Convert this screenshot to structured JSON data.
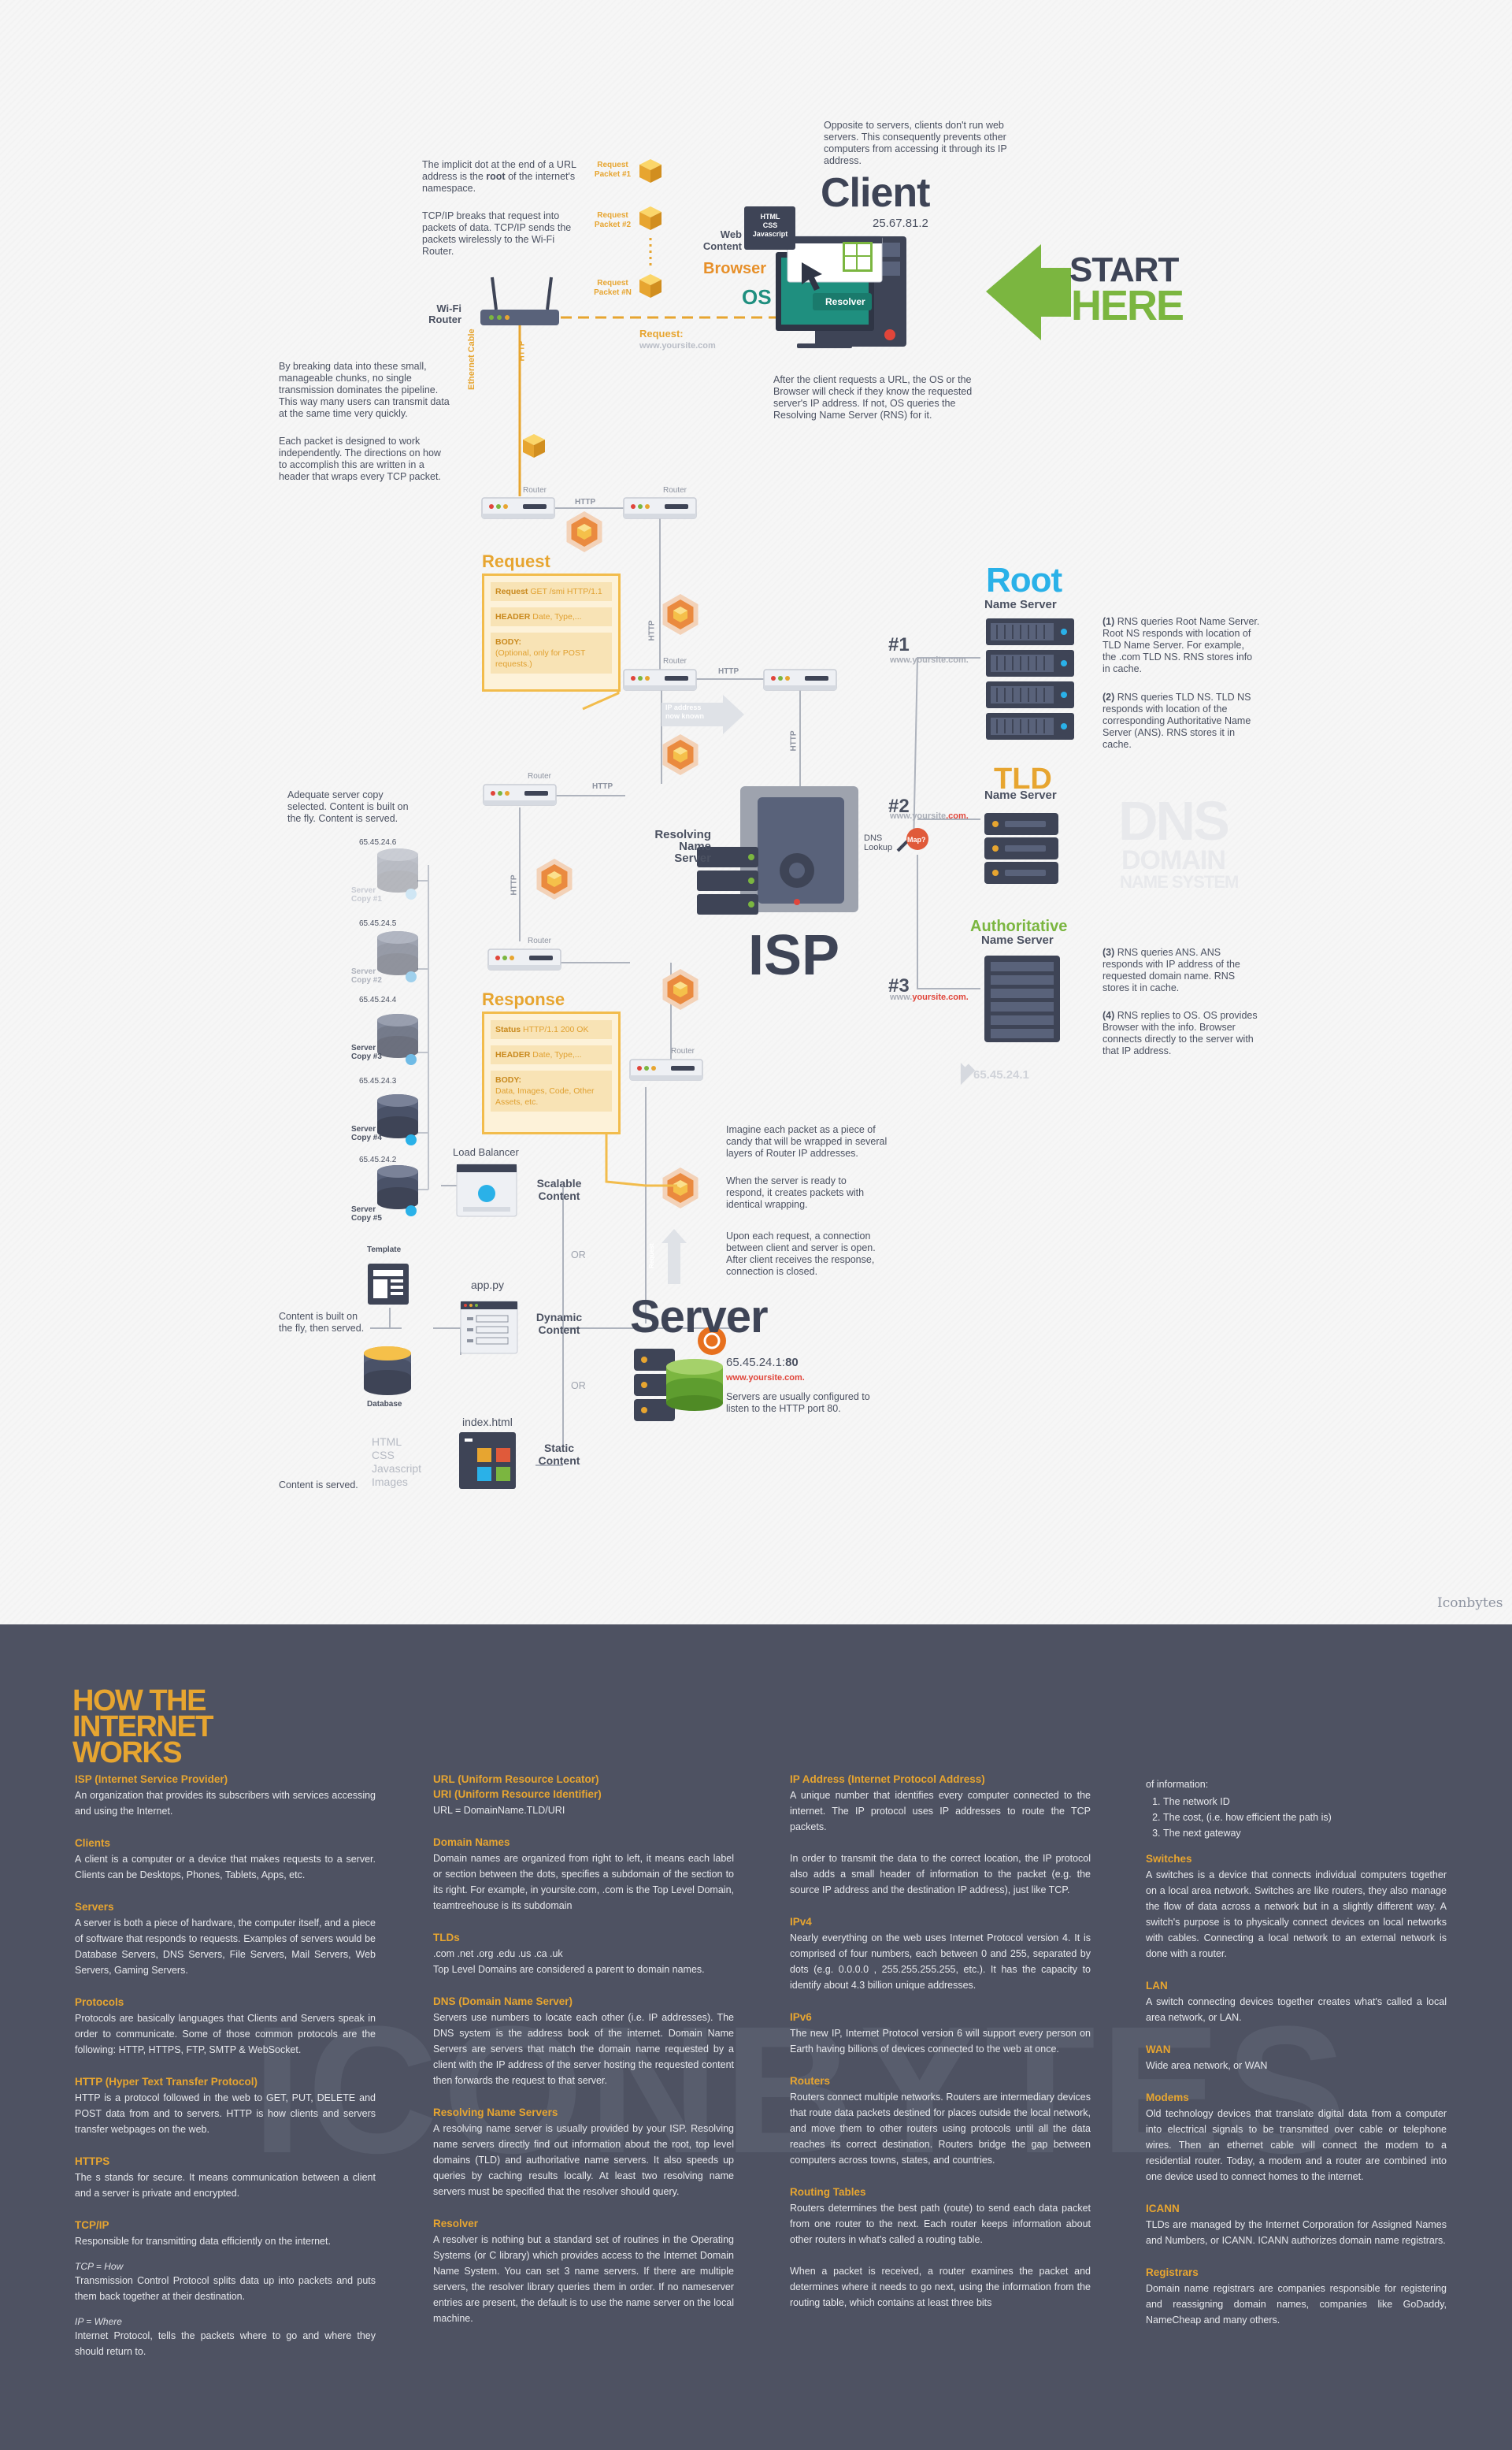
{
  "colors": {
    "gold": "#e7a530",
    "green": "#7bb640",
    "teal": "#1f8f7f",
    "dark": "#3e4456",
    "blue": "#2ab1e8",
    "red": "#e0453a",
    "bottom_bg": "#4e5262"
  },
  "start": {
    "line1": "START",
    "line2": "HERE"
  },
  "client": {
    "title": "Client",
    "ip": "25.67.81.2",
    "note": "Opposite to servers, clients don't run web servers. This consequently prevents other computers from accessing it through its IP address.",
    "web_content": "Web\nContent",
    "web_card": "HTML\nCSS\nJavascript",
    "browser": "Browser",
    "os": "OS",
    "resolver": "Resolver",
    "request_label": "Request:",
    "request_url": "www.yoursite.com",
    "after_note": "After the client requests a URL, the OS or the Browser will check if they know the requested server's IP address. If not, OS queries the Resolving Name Server (RNS) for it."
  },
  "router_notes": {
    "dot_pre": "The implicit dot at the end of a URL address is the ",
    "dot_bold": "root",
    "dot_post": " of the internet's namespace.",
    "tcp": "TCP/IP breaks that request into packets of data. TCP/IP sends the packets wirelessly to the Wi-Fi Router.",
    "chunks": "By breaking data into these small, manageable chunks, no single transmission dominates the pipeline. This way many users can transmit data at the same time very quickly.",
    "packet": "Each packet is designed to work independently. The directions on how to accomplish this are written in a header that wraps every TCP packet."
  },
  "packets": [
    "Request\nPacket #1",
    "Request\nPacket #2",
    "Request\nPacket #N"
  ],
  "wifi_router": "Wi-Fi\nRouter",
  "ethernet": "Ethernet Cable",
  "http": "HTTP",
  "router": "Router",
  "request_card": {
    "title": "Request",
    "rows": [
      {
        "key": "Request",
        "val": "GET /smi HTTP/1.1"
      },
      {
        "key": "HEADER",
        "val": "Date, Type,..."
      },
      {
        "key": "BODY:",
        "val": "(Optional, only for POST requests.)"
      }
    ]
  },
  "response_card": {
    "title": "Response",
    "rows": [
      {
        "key": "Status",
        "val": "HTTP/1.1 200 OK"
      },
      {
        "key": "HEADER",
        "val": "Date, Type,..."
      },
      {
        "key": "BODY:",
        "val": "Data, Images, Code, Other Assets, etc."
      }
    ]
  },
  "ip_arrow": "IP address\nnow known",
  "dns": {
    "root_title": "Root",
    "root_sub": "Name Server",
    "tld_title": "TLD",
    "tld_sub": "Name Server",
    "auth_title": "Authoritative",
    "auth_sub": "Name Server",
    "n1": "#1",
    "n2": "#2",
    "n3": "#3",
    "url1_pre": "www.yoursite",
    "url1_hl": ".com.",
    "url2_pre": "www.yoursite",
    "url2_hl": ".com.",
    "url3_pre": "www.",
    "url3_hl": "yoursite.com.",
    "lookup": "DNS\nLookup",
    "lookup_badge": "Map?",
    "logo1": "DNS",
    "logo2": "DOMAIN",
    "logo3": "NAME SYSTEM",
    "ip": "65.45.24.1",
    "note1_num": "(1)",
    "note1": " RNS queries Root Name Server. Root NS responds with location of TLD Name Server. For example, the .com TLD NS. RNS stores info in cache.",
    "note2_num": "(2)",
    "note2": " RNS queries TLD NS. TLD NS responds with location of the corresponding Authoritative Name Server (ANS). RNS stores it in cache.",
    "note3_num": "(3)",
    "note3": " RNS queries ANS. ANS responds with IP address of the requested domain name. RNS stores it in cache.",
    "note4_num": "(4)",
    "note4": " RNS replies to OS. OS provides Browser with the info. Browser connects directly to the server with that IP address."
  },
  "isp": {
    "title": "ISP",
    "rns": "Resolving\nName\nServer"
  },
  "server_copies": {
    "note": "Adequate server copy selected. Content is built on the fly. Content is served.",
    "items": [
      {
        "ip": "65.45.24.6",
        "name": "Server\nCopy #1"
      },
      {
        "ip": "65.45.24.5",
        "name": "Server\nCopy #2"
      },
      {
        "ip": "65.45.24.4",
        "name": "Server\nCopy #3"
      },
      {
        "ip": "65.45.24.3",
        "name": "Server\nCopy #4"
      },
      {
        "ip": "65.45.24.2",
        "name": "Server\nCopy #5"
      }
    ]
  },
  "content": {
    "load_balancer": "Load Balancer",
    "scalable": "Scalable\nContent",
    "or1": "OR",
    "or2": "OR",
    "template": "Template",
    "app": "app.py",
    "dynamic": "Dynamic\nContent",
    "built": "Content is built on\nthe fly, then served.",
    "database": "Database",
    "index": "index.html",
    "static": "Static\nContent",
    "assets": "HTML\nCSS\nJavascript\nImages",
    "served": "Content is served."
  },
  "server": {
    "title": "Server",
    "ip_pre": "65.45.24.1:",
    "ip_port": "80",
    "url": "www.yoursite.com.",
    "port_note": "Servers are usually configured to listen to the HTTP port 80.",
    "candy": "Imagine each packet as a piece of candy that will be wrapped in several layers of Router IP addresses.",
    "ready": "When the server is ready to respond, it creates packets with identical wrapping.",
    "request_note": "Upon each request, a connection between client and server is open. After client receives the response, connection is closed.",
    "arrow_label": "Request"
  },
  "signature": "Iconbytes",
  "glossary": {
    "logo": "HOW THE\nINTERNET\nWORKS",
    "watermark": "ICONBYTES",
    "col1": [
      {
        "title": "ISP (Internet Service Provider)",
        "body": "An organization that provides its subscribers with services accessing and using the Internet."
      },
      {
        "title": "Clients",
        "body": "A client is a computer or a device that makes requests to a server. Clients can be Desktops, Phones, Tablets, Apps, etc."
      },
      {
        "title": "Servers",
        "body": "A server is both a piece of hardware, the computer itself, and a piece of software that responds to requests. Examples of servers would be Database Servers, DNS Servers, File Servers, Mail Servers, Web Servers, Gaming Servers."
      },
      {
        "title": "Protocols",
        "body": "Protocols are basically languages that Clients and Servers speak in order to communicate. Some of those common protocols are the following: HTTP, HTTPS, FTP, SMTP & WebSocket."
      },
      {
        "title": "HTTP (Hyper Text Transfer Protocol)",
        "body": "HTTP is a protocol followed in the web to GET, PUT, DELETE and POST data from and to servers. HTTP is how clients and servers transfer webpages on the web."
      },
      {
        "title": "HTTPS",
        "body": "The s stands for secure. It means communication between a client and a server is private and encrypted."
      },
      {
        "title": "TCP/IP",
        "body": "Responsible for transmitting data efficiently on the internet.",
        "sub1": "TCP = How",
        "sub1_body": "Transmission Control Protocol splits data up into packets and puts them back together at their destination.",
        "sub2": "IP = Where",
        "sub2_body": "Internet Protocol, tells the packets where to go and where they should return to."
      }
    ],
    "col2": [
      {
        "title": "URL (Uniform Resource Locator)",
        "title2": "URI (Uniform Resource Identifier)",
        "body": "URL = DomainName.TLD/URI"
      },
      {
        "title": "Domain Names",
        "body": "Domain names are organized from right to left, it means each label or section between the dots, specifies a subdomain of the section to its right. For example, in yoursite.com, .com is the Top Level Domain, teamtreehouse is its subdomain"
      },
      {
        "title": "TLDs",
        "body": ".com .net .org .edu .us .ca .uk\nTop Level Domains are considered a parent to domain names."
      },
      {
        "title": "DNS (Domain Name Server)",
        "body": "Servers use numbers to locate each other (i.e. IP addresses). The DNS system is the address book of the internet. Domain Name Servers are servers that match the domain name requested by a client with the IP address of the server hosting the requested content then forwards the request to that server."
      },
      {
        "title": "Resolving Name Servers",
        "body": "A resolving name server is usually provided by your ISP. Resolving name servers directly find out information about the root, top level domains (TLD) and authoritative name servers. It also speeds up queries by caching results locally. At least two resolving name servers must be specified that the resolver should query."
      },
      {
        "title": "Resolver",
        "body": "A resolver is nothing but a standard set of routines in the Operating Systems (or C library) which provides access to the Internet Domain Name System. You can set 3 name servers. If there are multiple servers, the resolver library queries them in order. If no nameserver entries are present, the default is to use the name server on the local machine."
      }
    ],
    "col3": [
      {
        "title": "IP Address (Internet Protocol Address)",
        "body": "A unique number that identifies every computer connected to the internet. The IP protocol uses IP addresses to route the TCP packets.\n\nIn order to transmit the data to the correct location, the IP protocol also adds a small header of information to the packet (e.g. the source IP address and the destination IP address), just like TCP."
      },
      {
        "title": "IPv4",
        "body": "Nearly everything on the web uses Internet Protocol version 4. It is comprised of four numbers, each between 0 and 255, separated by dots (e.g. 0.0.0.0 , 255.255.255.255, etc.). It has the capacity to identify about 4.3 billion unique addresses."
      },
      {
        "title": "IPv6",
        "body": "The new IP, Internet Protocol version 6 will support every person on Earth having billions of devices connected to the web at once."
      },
      {
        "title": "Routers",
        "body": "Routers connect multiple networks. Routers are intermediary devices that route data packets destined for places outside the local network, and move them to other routers using protocols until all the data reaches its correct destination. Routers bridge the gap between computers across towns, states, and countries."
      },
      {
        "title": "Routing Tables",
        "body": "Routers determines the best path (route) to send each data packet from one router to the next. Each router keeps information about other routers in what's called a routing table.\n\nWhen a packet is received, a router examines the packet and determines where it needs to go next, using the information from the routing table, which contains at least three bits"
      }
    ],
    "col4_intro": "of information:",
    "col4_list": [
      "The network ID",
      "The cost, (i.e. how efficient the path is)",
      "The next gateway"
    ],
    "col4": [
      {
        "title": "Switches",
        "body": "A switches is a device that connects individual computers together on a local area network. Switches are like routers, they also manage the flow of data across a network but in a slightly different way. A switch's purpose is to physically connect devices on local networks with cables. Connecting a local network to an external network is done with a router."
      },
      {
        "title": "LAN",
        "body": "A switch connecting devices together creates what's called a local area network, or LAN."
      },
      {
        "title": "WAN",
        "body": "Wide area network, or WAN"
      },
      {
        "title": "Modems",
        "body": "Old technology devices that translate digital data from a computer into electrical signals to be transmitted over cable or telephone wires. Then an ethernet cable will connect the modem to a residential router. Today, a modem and a router are combined into one device used to connect homes to the internet."
      },
      {
        "title": "ICANN",
        "body": "TLDs are managed by the Internet Corporation for Assigned Names and Numbers, or ICANN. ICANN authorizes domain name registrars."
      },
      {
        "title": "Registrars",
        "body": "Domain name registrars are companies responsible for registering and reassigning domain names, companies like GoDaddy, NameCheap and many others."
      }
    ]
  }
}
